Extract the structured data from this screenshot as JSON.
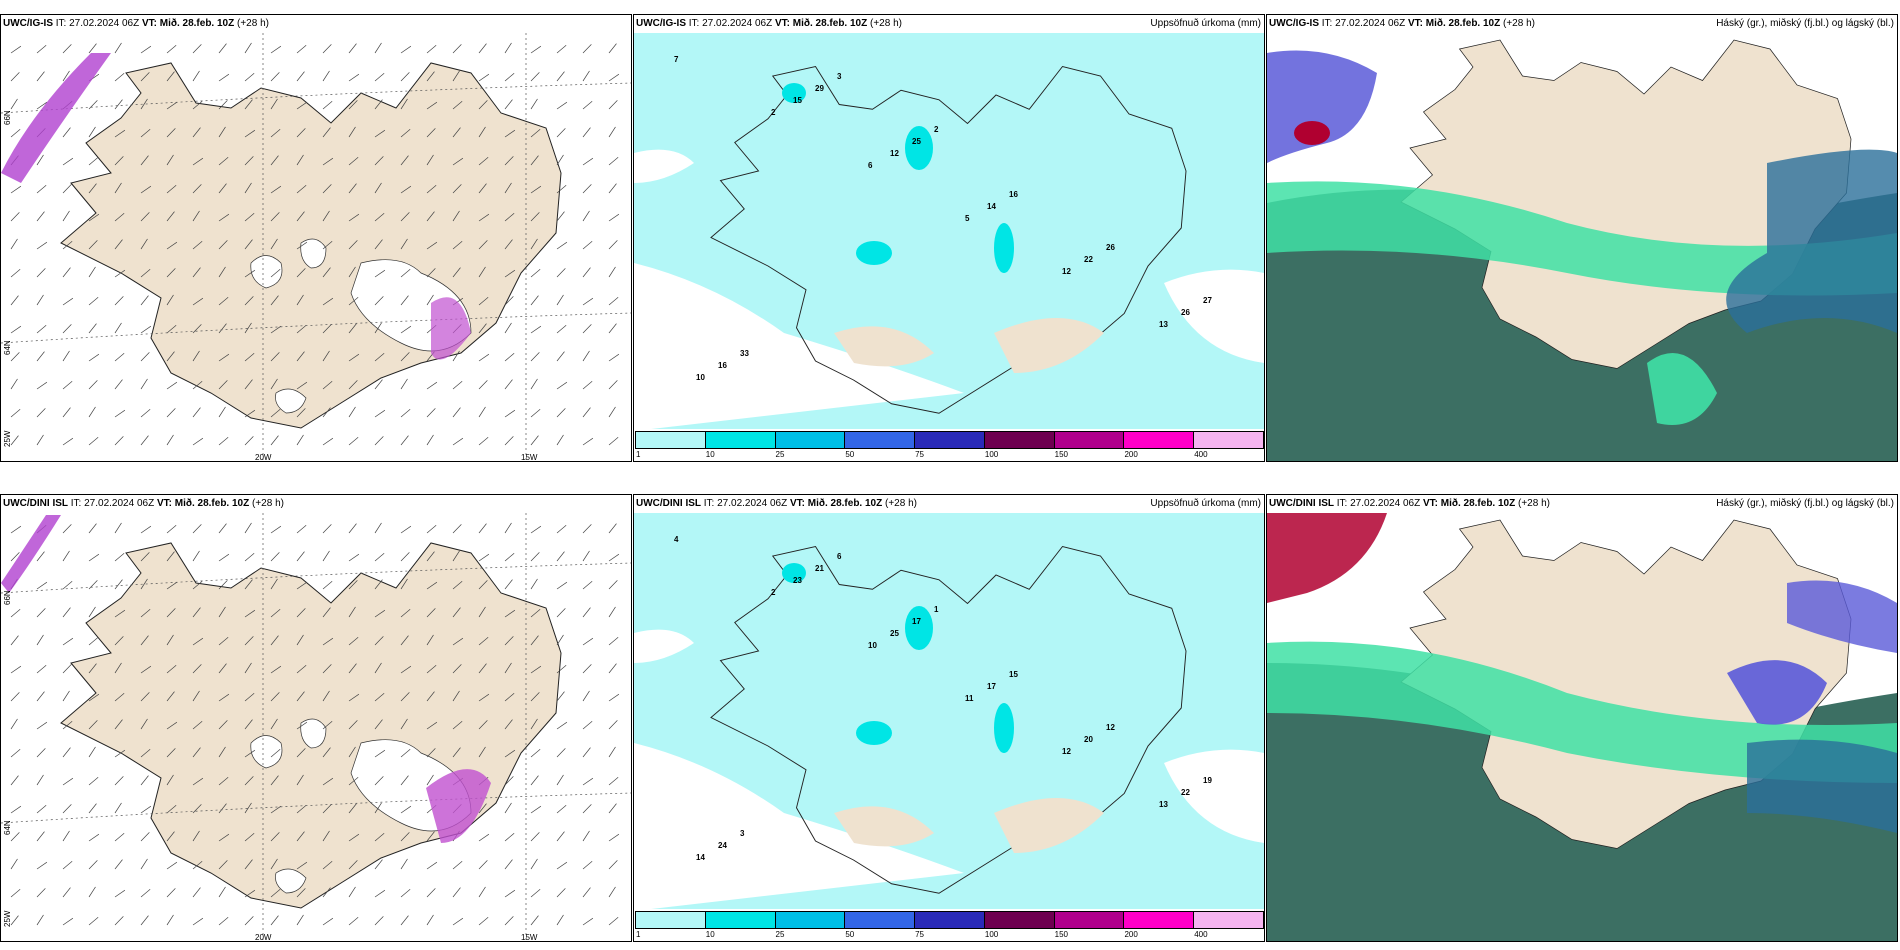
{
  "panels": [
    {
      "id": "r0c0",
      "model": "UWC/IG-IS",
      "it_label": "IT:",
      "it": "27.02.2024 06Z",
      "vt_label": "VT:",
      "vt": "Mið. 28.feb. 10Z",
      "lead": "(+28 h)",
      "right_title": ""
    },
    {
      "id": "r0c1",
      "model": "UWC/IG-IS",
      "it_label": "IT:",
      "it": "27.02.2024 06Z",
      "vt_label": "VT:",
      "vt": "Mið. 28.feb. 10Z",
      "lead": "(+28 h)",
      "right_title": "Uppsöfnuð úrkoma (mm)"
    },
    {
      "id": "r0c2",
      "model": "UWC/IG-IS",
      "it_label": "IT:",
      "it": "27.02.2024 06Z",
      "vt_label": "VT:",
      "vt": "Mið. 28.feb. 10Z",
      "lead": "(+28 h)",
      "right_title": "Háský (gr.), miðský (fj.bl.) og lágský (bl.)"
    },
    {
      "id": "r1c0",
      "model": "UWC/DINI ISL",
      "it_label": "IT:",
      "it": "27.02.2024 06Z",
      "vt_label": "VT:",
      "vt": "Mið. 28.feb. 10Z",
      "lead": "(+28 h)",
      "right_title": ""
    },
    {
      "id": "r1c1",
      "model": "UWC/DINI ISL",
      "it_label": "IT:",
      "it": "27.02.2024 06Z",
      "vt_label": "VT:",
      "vt": "Mið. 28.feb. 10Z",
      "lead": "(+28 h)",
      "right_title": "Uppsöfnuð úrkoma (mm)"
    },
    {
      "id": "r1c2",
      "model": "UWC/DINI ISL",
      "it_label": "IT:",
      "it": "27.02.2024 06Z",
      "vt_label": "VT:",
      "vt": "Mið. 28.feb. 10Z",
      "lead": "(+28 h)",
      "right_title": "Háský (gr.), miðský (fj.bl.) og lágský (bl.)"
    }
  ],
  "gridlabels": {
    "lat_66": "66N",
    "lat_64": "64N",
    "lat_25w": "25W",
    "lon_20": "20W",
    "lon_15": "15W"
  },
  "colorbar": {
    "colors": [
      "#b3f7f7",
      "#00e5e5",
      "#00bfe6",
      "#3366e6",
      "#2a2ab8",
      "#6e0050",
      "#b0008c",
      "#ff00c8",
      "#f5b4f0"
    ],
    "labels": [
      "1",
      "10",
      "25",
      "50",
      "75",
      "100",
      "150",
      "200",
      "400"
    ]
  },
  "precip_values_top": [
    "7",
    "2",
    "6",
    "5",
    "12",
    "13",
    "10",
    "15",
    "12",
    "14",
    "22",
    "26",
    "16",
    "29",
    "25",
    "16",
    "26",
    "27",
    "33",
    "3",
    "2"
  ],
  "precip_values_bottom": [
    "4",
    "2",
    "10",
    "11",
    "12",
    "13",
    "14",
    "23",
    "25",
    "17",
    "20",
    "22",
    "24",
    "21",
    "17",
    "15",
    "12",
    "19",
    "3",
    "6",
    "1"
  ],
  "colors": {
    "land": "#efe2cf",
    "snow": "#ffffff",
    "precip_light": "#b3f7f7",
    "precip_mid": "#00e5e5",
    "cloud_low": "#2f6b5a",
    "cloud_mid": "#3fe0a5",
    "cloud_high": "#5a5ad8",
    "cloud_red": "#b00030"
  }
}
